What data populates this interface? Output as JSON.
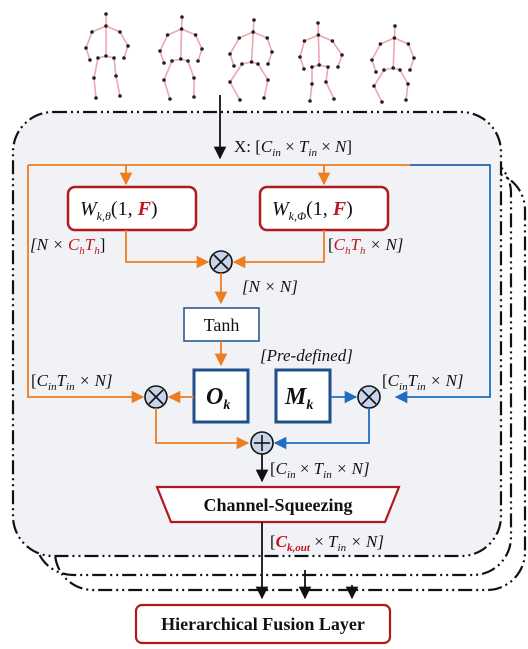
{
  "input_shape": {
    "prefix": "X: [",
    "c": "C",
    "c_sub": "in",
    "t": "T",
    "t_sub": "in",
    "n": "N",
    "suffix": "]"
  },
  "theta_block": {
    "w": "W",
    "sub": "k,θ",
    "args_open": "(1, ",
    "f": "F",
    "args_close": ")"
  },
  "phi_block": {
    "w": "W",
    "sub": "k,Φ",
    "args_open": "(1, ",
    "f": "F",
    "args_close": ")"
  },
  "theta_out_label": {
    "open": "[N × ",
    "c": "C",
    "c_sub": "h",
    "t": "T",
    "t_sub": "h",
    "close": "]"
  },
  "phi_out_label": {
    "open": "[",
    "c": "C",
    "c_sub": "h",
    "t": "T",
    "t_sub": "h",
    "close": " × N]"
  },
  "product_label": "[N × N]",
  "tanh_label": "Tanh",
  "predefined_label": "[Pre-defined]",
  "o_block": {
    "letter": "O",
    "sub": "k"
  },
  "m_block": {
    "letter": "M",
    "sub": "k"
  },
  "side_label_left": {
    "open": "[",
    "c": "C",
    "c_sub": "in",
    "t": "T",
    "t_sub": "in",
    "close": " × N]"
  },
  "side_label_right": {
    "open": "[",
    "c": "C",
    "c_sub": "in",
    "t": "T",
    "t_sub": "in",
    "close": " × N]"
  },
  "sum_out_label": {
    "open": "[",
    "c": "C",
    "c_sub": "in",
    "mid": " × ",
    "t": "T",
    "t_sub": "in",
    "close": " × N]"
  },
  "channel_squeezing_label": "Channel-Squeezing",
  "output_label": {
    "open": "[",
    "c": "C",
    "c_sub": "k,out",
    "mid": " × ",
    "t": "T",
    "t_sub": "in",
    "close": " × N]"
  },
  "fusion_layer_label": "Hierarchical Fusion Layer",
  "colors": {
    "orange": "#ee7d22",
    "blue": "#1f6fc0",
    "dark_red": "#b0191e",
    "dark_blue": "#1f4e8c",
    "panel": "#f0f2f5",
    "skeleton": "#f0a5b0",
    "joint": "#222222"
  }
}
